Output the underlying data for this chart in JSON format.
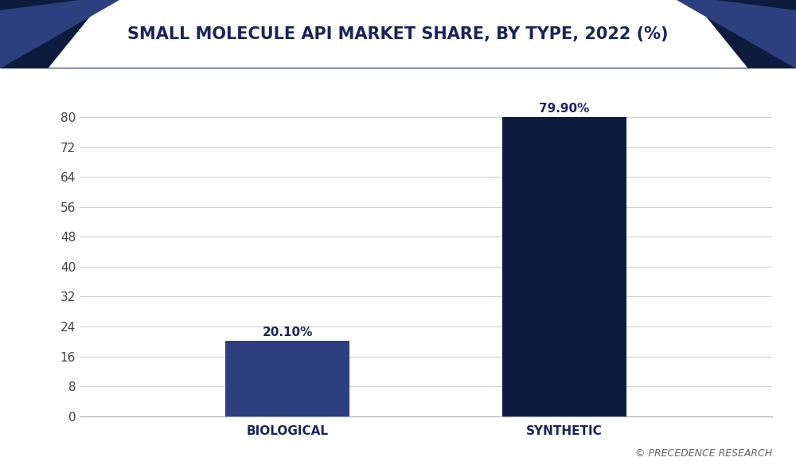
{
  "title": "SMALL MOLECULE API MARKET SHARE, BY TYPE, 2022 (%)",
  "categories": [
    "BIOLOGICAL",
    "SYNTHETIC"
  ],
  "values": [
    20.1,
    79.9
  ],
  "labels": [
    "20.10%",
    "79.90%"
  ],
  "bar_color_biological": "#2e3f7f",
  "bar_color_synthetic": "#0d1b3e",
  "background_color": "#ffffff",
  "plot_bg_color": "#ffffff",
  "title_color": "#1a2456",
  "tick_label_color": "#444444",
  "xlabel_color": "#1a2456",
  "yticks": [
    0,
    8,
    16,
    24,
    32,
    40,
    48,
    56,
    64,
    72,
    80
  ],
  "ylim": [
    0,
    86
  ],
  "grid_color": "#d0d0d0",
  "watermark": "© PRECEDENCE RESEARCH",
  "title_fontsize": 15,
  "bar_width": 0.18,
  "header_bg_color": "#f0f2f7",
  "corner_color_dark": "#0d1b3e",
  "corner_color_mid": "#2e3f7f",
  "header_border_color": "#1a2456",
  "x_positions": [
    0.3,
    0.7
  ]
}
